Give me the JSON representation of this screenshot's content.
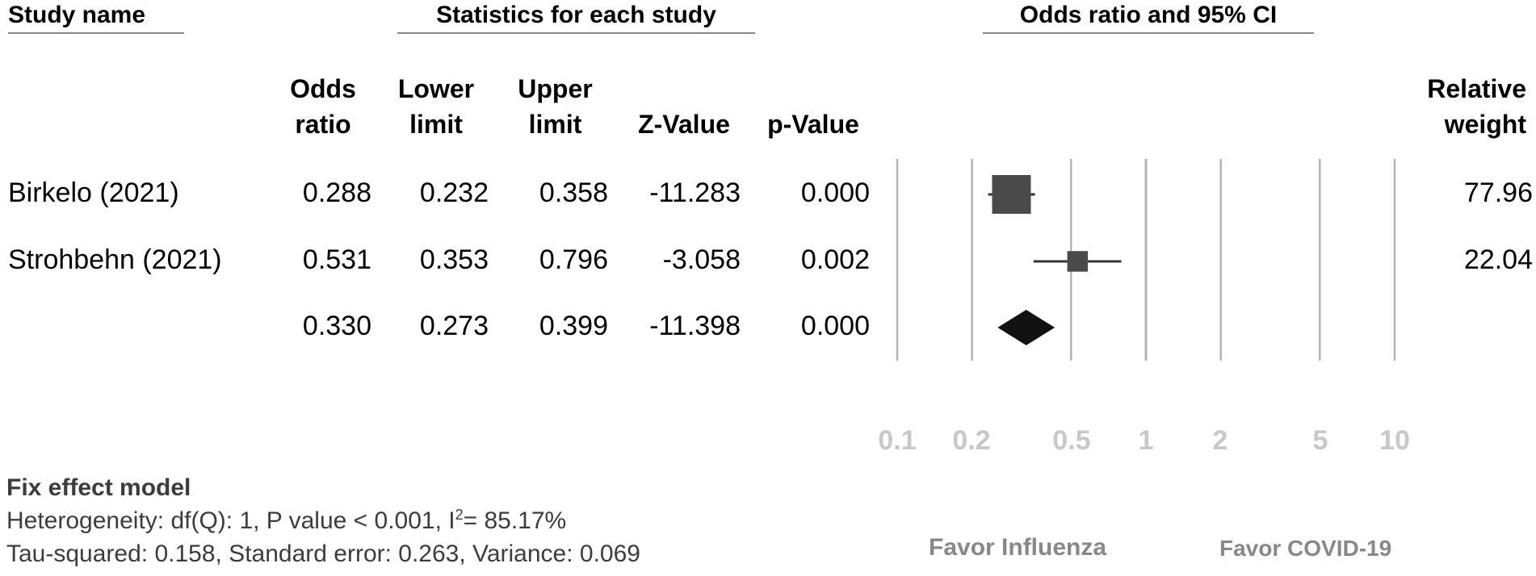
{
  "headers": {
    "study_name": "Study name",
    "statistics": "Statistics for each study",
    "odds_ratio_ci": "Odds ratio and 95% CI"
  },
  "columns": {
    "odds_ratio": [
      "Odds",
      "ratio"
    ],
    "lower_limit": [
      "Lower",
      "limit"
    ],
    "upper_limit": [
      "Upper",
      "limit"
    ],
    "z_value": "Z-Value",
    "p_value": "p-Value",
    "relative_weight": [
      "Relative",
      "weight"
    ]
  },
  "rows": [
    {
      "study": "Birkelo (2021)",
      "or": "0.288",
      "lower": "0.232",
      "upper": "0.358",
      "z": "-11.283",
      "p": "0.000",
      "weight": "77.96"
    },
    {
      "study": "Strohbehn (2021)",
      "or": "0.531",
      "lower": "0.353",
      "upper": "0.796",
      "z": "-3.058",
      "p": "0.002",
      "weight": "22.04"
    },
    {
      "study": "",
      "or": "0.330",
      "lower": "0.273",
      "upper": "0.399",
      "z": "-11.398",
      "p": "0.000",
      "weight": ""
    }
  ],
  "axis": {
    "ticks": [
      "0.1",
      "0.2",
      "0.5",
      "1",
      "2",
      "5",
      "10"
    ],
    "favor_left": "Favor Influenza",
    "favor_right": "Favor COVID-19"
  },
  "footer": {
    "model": "Fix effect model",
    "heterogeneity_prefix": "Heterogeneity: df(Q): 1, P value < 0.001, I",
    "heterogeneity_sup": "2",
    "heterogeneity_suffix": "= 85.17%",
    "tau": "Tau-squared: 0.158, Standard error: 0.263, Variance: 0.069"
  },
  "colors": {
    "marker": "#4a4a4a",
    "diamond": "#111111",
    "gridline": "#b4b4b4"
  },
  "chart_data": {
    "type": "forest",
    "scale": "log",
    "x_ticks": [
      0.1,
      0.2,
      0.5,
      1,
      2,
      5,
      10
    ],
    "xlim": [
      0.1,
      10
    ],
    "studies": [
      {
        "name": "Birkelo (2021)",
        "or": 0.288,
        "lower": 0.232,
        "upper": 0.358,
        "weight": 77.96
      },
      {
        "name": "Strohbehn (2021)",
        "or": 0.531,
        "lower": 0.353,
        "upper": 0.796,
        "weight": 22.04
      }
    ],
    "summary": {
      "or": 0.33,
      "lower": 0.273,
      "upper": 0.399
    }
  }
}
